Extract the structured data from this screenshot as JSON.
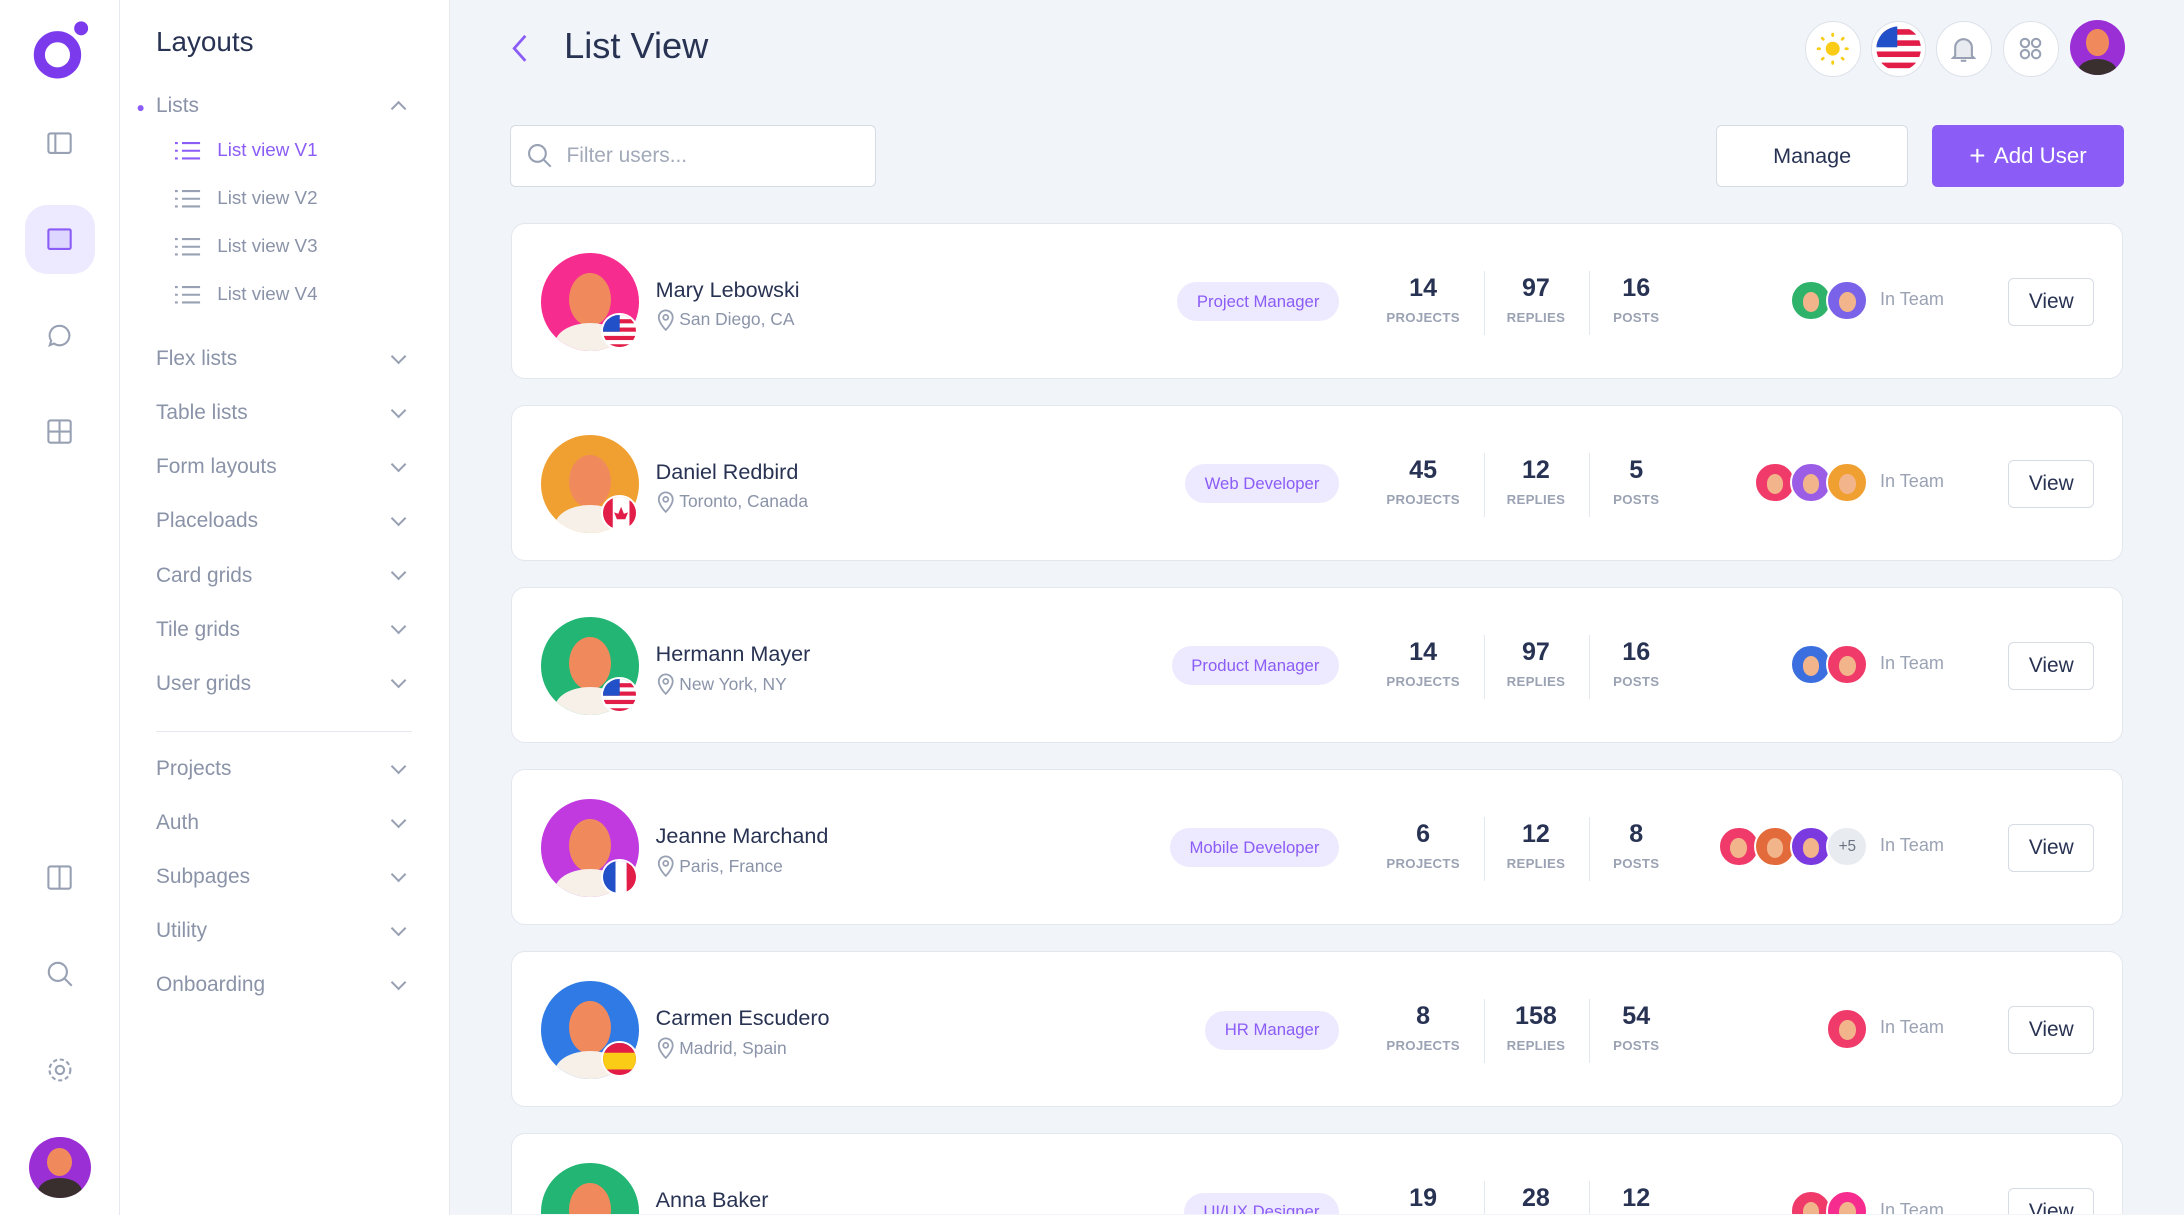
{
  "sidebar": {
    "title": "Layouts",
    "lists": {
      "label": "Lists",
      "items": [
        {
          "label": "List view V1",
          "active": true
        },
        {
          "label": "List view V2"
        },
        {
          "label": "List view V3"
        },
        {
          "label": "List view V4"
        }
      ]
    },
    "groups": [
      "Flex lists",
      "Table lists",
      "Form layouts",
      "Placeloads",
      "Card grids",
      "Tile grids",
      "User grids"
    ],
    "groups2": [
      "Projects",
      "Auth",
      "Subpages",
      "Utility",
      "Onboarding"
    ]
  },
  "rail": {
    "icons": [
      "sidebar-icon",
      "window-icon",
      "chat-icon",
      "grid-icon",
      "columns-icon",
      "search-icon",
      "settings-icon"
    ]
  },
  "header": {
    "title": "List View"
  },
  "toolbar": {
    "search_placeholder": "Filter users...",
    "manage": "Manage",
    "add": "Add User"
  },
  "colors": {
    "accent": "#8b5cf6",
    "badge_bg": "#ede9fe"
  },
  "stat_labels": {
    "projects": "PROJECTS",
    "replies": "REPLIES",
    "posts": "POSTS"
  },
  "team_label": "In Team",
  "view_label": "View",
  "users": [
    {
      "name": "Mary Lebowski",
      "location": "San Diego, CA",
      "role": "Project Manager",
      "projects": "14",
      "replies": "97",
      "posts": "16",
      "flag": "us",
      "avatar": "#f72c8f",
      "team": [
        "#2fb36b",
        "#7a63e8"
      ]
    },
    {
      "name": "Daniel Redbird",
      "location": "Toronto, Canada",
      "role": "Web Developer",
      "projects": "45",
      "replies": "12",
      "posts": "5",
      "flag": "ca",
      "avatar": "#f0a030",
      "team": [
        "#f03a6a",
        "#9b5de5",
        "#f0a030"
      ]
    },
    {
      "name": "Hermann Mayer",
      "location": "New York, NY",
      "role": "Product Manager",
      "projects": "14",
      "replies": "97",
      "posts": "16",
      "flag": "us",
      "avatar": "#22b573",
      "team": [
        "#3b6fe0",
        "#f03a6a"
      ]
    },
    {
      "name": "Jeanne Marchand",
      "location": "Paris, France",
      "role": "Mobile Developer",
      "projects": "6",
      "replies": "12",
      "posts": "8",
      "flag": "fr",
      "avatar": "#c03ae0",
      "team": [
        "#f03a6a",
        "#e36a3a",
        "#7a3ae0"
      ],
      "more": "+5"
    },
    {
      "name": "Carmen Escudero",
      "location": "Madrid, Spain",
      "role": "HR Manager",
      "projects": "8",
      "replies": "158",
      "posts": "54",
      "flag": "es",
      "avatar": "#2f7ae5",
      "team": [
        "#f03a6a"
      ]
    },
    {
      "name": "Anna Baker",
      "location": "",
      "role": "UI/UX Designer",
      "projects": "19",
      "replies": "28",
      "posts": "12",
      "flag": "",
      "avatar": "#22b573",
      "team": [
        "#f03a6a",
        "#f72c8f"
      ]
    }
  ]
}
